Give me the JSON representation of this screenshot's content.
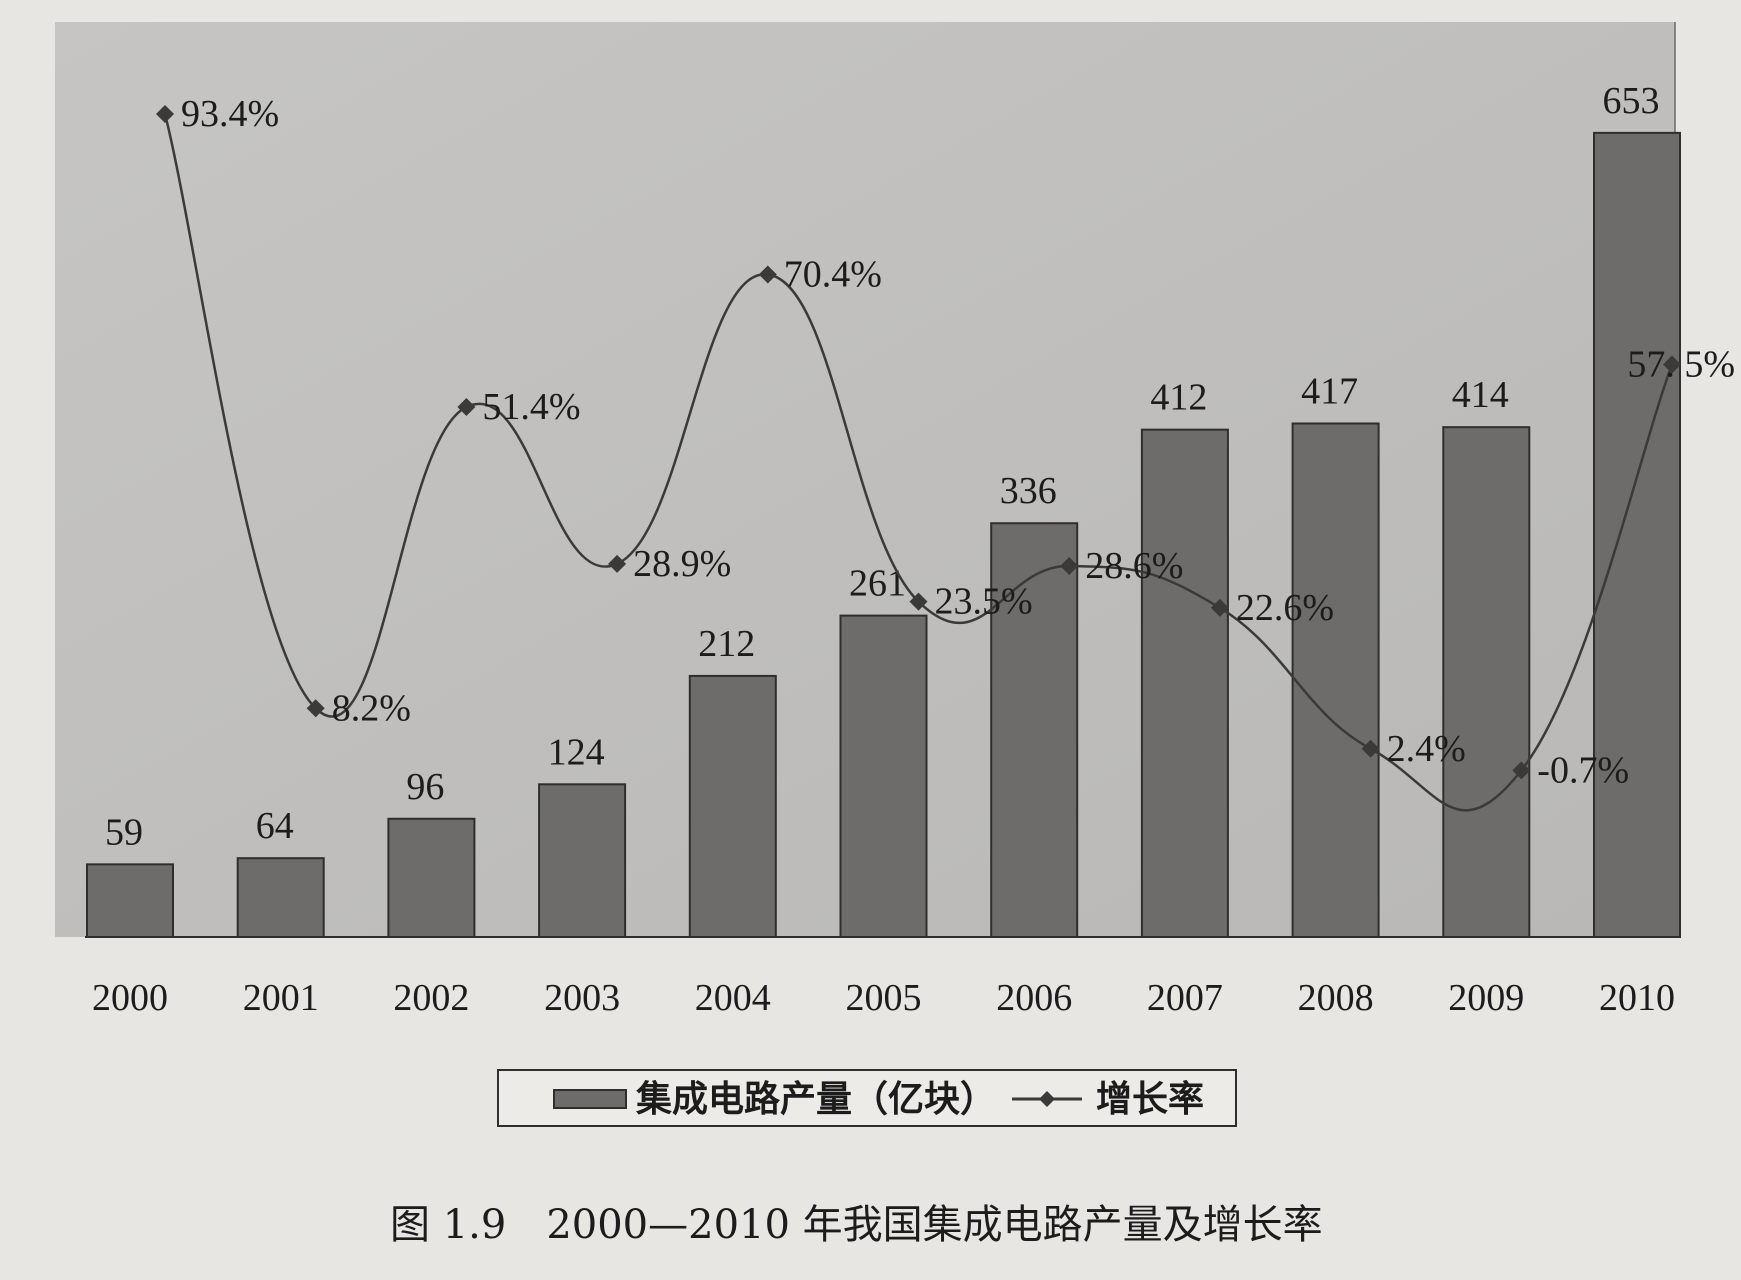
{
  "chart_data": {
    "type": "bar",
    "categories": [
      "2000",
      "2001",
      "2002",
      "2003",
      "2004",
      "2005",
      "2006",
      "2007",
      "2008",
      "2009",
      "2010"
    ],
    "series": [
      {
        "name": "集成电路产量（亿块）",
        "type": "bar",
        "values": [
          59,
          64,
          96,
          124,
          212,
          261,
          336,
          412,
          417,
          414,
          653
        ]
      },
      {
        "name": "增长率",
        "type": "line",
        "values": [
          93.4,
          8.2,
          51.4,
          28.9,
          70.4,
          23.5,
          28.6,
          22.6,
          2.4,
          -0.7,
          57.5
        ]
      }
    ],
    "bar_labels": [
      "59",
      "64",
      "96",
      "124",
      "212",
      "261",
      "336",
      "412",
      "417",
      "414",
      "653"
    ],
    "rate_labels": [
      "93.4%",
      "8.2%",
      "51.4%",
      "28.9%",
      "70.4%",
      "23.5%",
      "28.6%",
      "22.6%",
      "2.4%",
      "-0.7%",
      "57. 5%"
    ],
    "ylim": [
      0,
      700
    ],
    "rate_lim": [
      -20,
      100
    ],
    "legend_position": "bottom",
    "colors": {
      "bar": "#6e6c6b",
      "line": "#3a3a3a",
      "plot_bg": "#c9c8c6"
    }
  },
  "legend": {
    "bar_label": "集成电路产量（亿块）",
    "line_label": "增长率"
  },
  "caption": "图 1.9　2000—2010 年我国集成电路产量及增长率"
}
